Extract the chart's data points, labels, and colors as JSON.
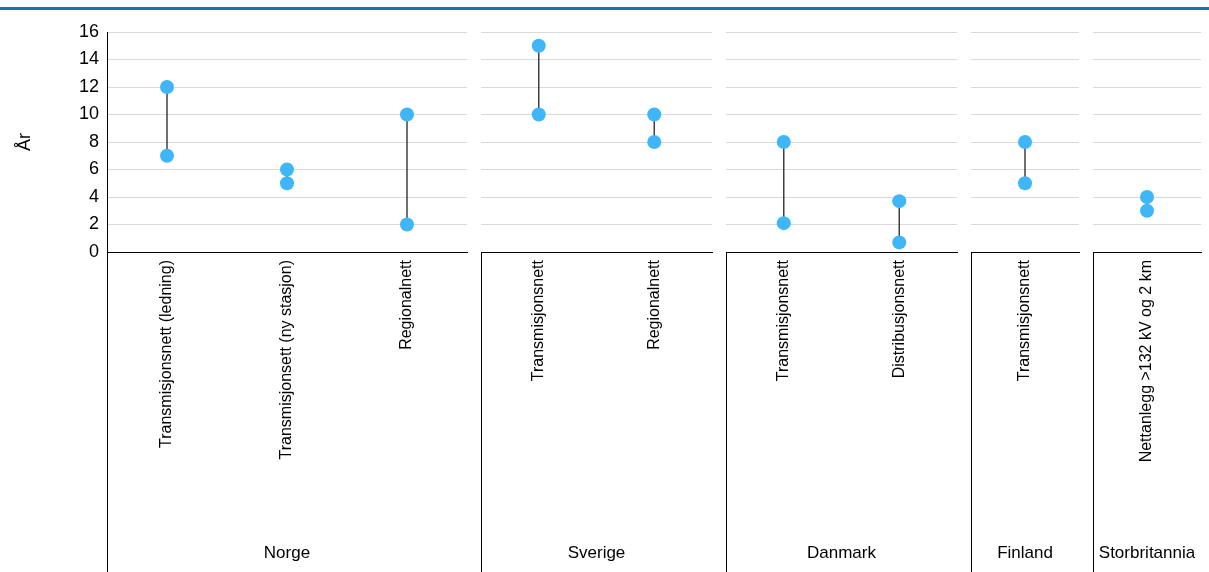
{
  "chart_data": [
    {
      "type": "scatter",
      "ylabel": "År",
      "xlabel": "Norge",
      "categories": [
        "Transmisjonsnett (ledning)",
        "Transmisjonsett (ny stasjon)",
        "Regionalnett"
      ],
      "series": [
        {
          "color": "#3fb6f8",
          "values": [
            7,
            5,
            2
          ]
        },
        {
          "color": "#3fb6f8",
          "values": [
            12,
            6,
            10
          ]
        }
      ],
      "ylim": [
        0,
        16
      ],
      "yticks": [
        0,
        2,
        4,
        6,
        8,
        10,
        12,
        14,
        16
      ],
      "grid": "y",
      "marker": "circle"
    },
    {
      "type": "scatter",
      "xlabel": "Sverige",
      "categories": [
        "Transmisjonsnett",
        "Regionalnett"
      ],
      "series": [
        {
          "color": "#3fb6f8",
          "values": [
            10,
            8
          ]
        },
        {
          "color": "#3fb6f8",
          "values": [
            15,
            10
          ]
        }
      ],
      "ylim": [
        0,
        16
      ],
      "yticks": [
        0,
        2,
        4,
        6,
        8,
        10,
        12,
        14,
        16
      ],
      "grid": "y",
      "marker": "circle",
      "tick_labels": "x"
    },
    {
      "type": "scatter",
      "xlabel": "Danmark",
      "categories": [
        "Transmisjonsnett",
        "Distribusjonsnett"
      ],
      "series": [
        {
          "color": "#3fb6f8",
          "values": [
            2.1,
            0.7
          ]
        },
        {
          "color": "#3fb6f8",
          "values": [
            8,
            3.7
          ]
        }
      ],
      "ylim": [
        0,
        16
      ],
      "yticks": [
        0,
        2,
        4,
        6,
        8,
        10,
        12,
        14,
        16
      ],
      "grid": "y",
      "marker": "circle",
      "tick_labels": "x"
    },
    {
      "type": "scatter",
      "xlabel": "Finland",
      "categories": [
        "Transmisjonsnett"
      ],
      "series": [
        {
          "color": "#3fb6f8",
          "values": [
            5
          ]
        },
        {
          "color": "#3fb6f8",
          "values": [
            8
          ]
        }
      ],
      "ylim": [
        0,
        16
      ],
      "yticks": [
        0,
        2,
        4,
        6,
        8,
        10,
        12,
        14,
        16
      ],
      "grid": "y",
      "marker": "circle",
      "tick_labels": "x"
    },
    {
      "type": "scatter",
      "xlabel": "Storbritannia",
      "categories": [
        "Nettanlegg >132 kV og 2 km"
      ],
      "series": [
        {
          "color": "#3fb6f8",
          "values": [
            3
          ]
        },
        {
          "color": "#3fb6f8",
          "values": [
            4
          ]
        }
      ],
      "ylim": [
        0,
        16
      ],
      "yticks": [
        0,
        2,
        4,
        6,
        8,
        10,
        12,
        14,
        16
      ],
      "grid": "y",
      "marker": "circle",
      "tick_labels": "x"
    }
  ]
}
